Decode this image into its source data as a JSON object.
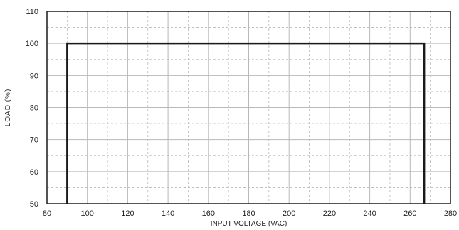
{
  "chart_data": {
    "type": "line",
    "title": "",
    "xlabel": "INPUT VOLTAGE (VAC)",
    "ylabel": "LOAD (%)",
    "xlim": [
      80,
      280
    ],
    "ylim": [
      50,
      110
    ],
    "x_ticks": [
      80,
      100,
      120,
      140,
      160,
      180,
      200,
      220,
      240,
      260,
      280
    ],
    "y_ticks": [
      50,
      60,
      70,
      80,
      90,
      100,
      110
    ],
    "x_minor_step": 10,
    "y_minor_step": 5,
    "grid": true,
    "series": [
      {
        "x": [
          90,
          90,
          267,
          267
        ],
        "y": [
          50,
          100,
          100,
          50
        ]
      }
    ],
    "colors": {
      "line": "#1a1a1a",
      "grid": "#b8b8b8",
      "frame": "#1a1a1a"
    }
  }
}
